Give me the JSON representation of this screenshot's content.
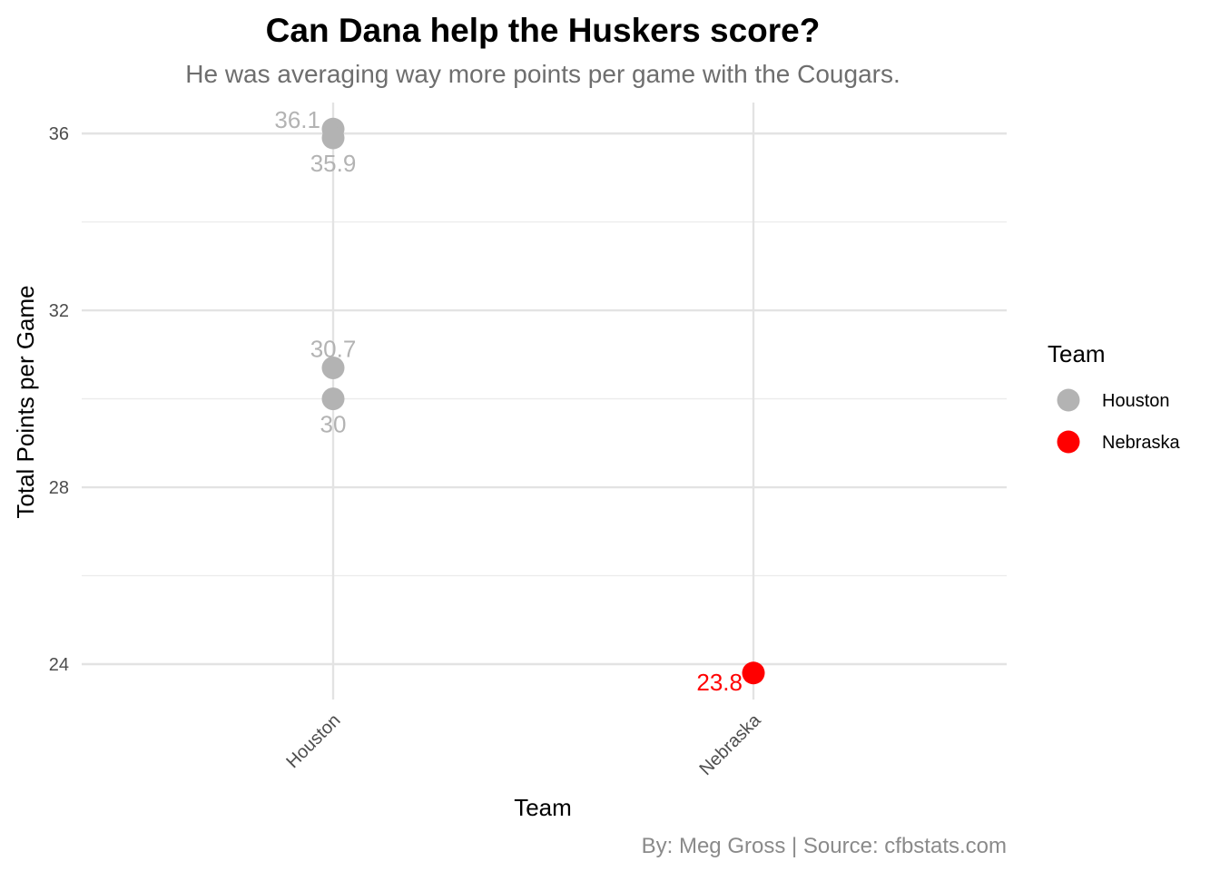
{
  "chart_data": {
    "type": "scatter",
    "title": "Can Dana help the Huskers score?",
    "subtitle": "He was averaging way more points per game with the Cougars.",
    "caption": "By: Meg Gross | Source: cfbstats.com",
    "xlabel": "Team",
    "ylabel": "Total Points per Game",
    "categories": [
      "Houston",
      "Nebraska"
    ],
    "y_ticks": [
      "24",
      "28",
      "32",
      "36"
    ],
    "ylim": [
      23.2,
      36.7
    ],
    "grid": true,
    "legend": {
      "title": "Team",
      "placement": "right",
      "entries": [
        {
          "label": "Houston",
          "color": "#b3b3b3"
        },
        {
          "label": "Nebraska",
          "color": "#ff0000"
        }
      ]
    },
    "points": [
      {
        "team": "Houston",
        "value": 36.1,
        "label": "36.1",
        "label_side": "upper-left"
      },
      {
        "team": "Houston",
        "value": 35.9,
        "label": "35.9",
        "label_side": "below"
      },
      {
        "team": "Houston",
        "value": 30.7,
        "label": "30.7",
        "label_side": "above"
      },
      {
        "team": "Houston",
        "value": 30,
        "label": "30",
        "label_side": "below"
      },
      {
        "team": "Nebraska",
        "value": 23.8,
        "label": "23.8",
        "label_side": "lower-left"
      }
    ]
  }
}
